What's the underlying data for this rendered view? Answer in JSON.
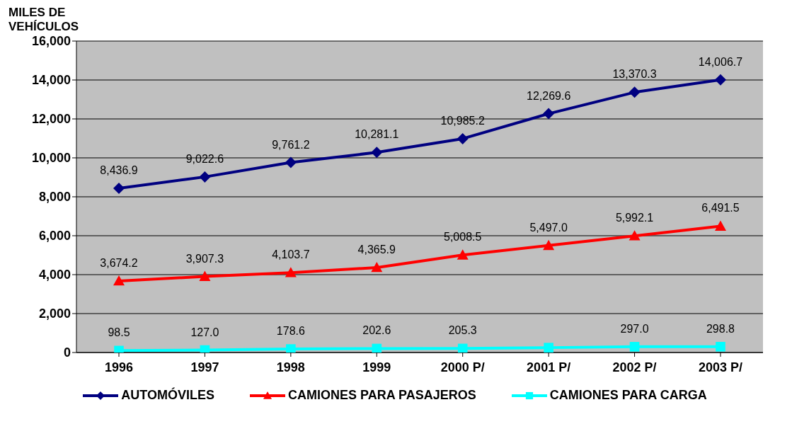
{
  "chart_data": {
    "type": "line",
    "ylabel": "MILES DE VEHÍCULOS",
    "categories": [
      "1996",
      "1997",
      "1998",
      "1999",
      "2000 P/",
      "2001 P/",
      "2002 P/",
      "2003 P/"
    ],
    "series": [
      {
        "name": "AUTOMÓVILES",
        "color": "#000080",
        "marker": "diamond",
        "values": [
          8436.9,
          9022.6,
          9761.2,
          10281.1,
          10985.2,
          12269.6,
          13370.3,
          14006.7
        ],
        "value_labels": [
          "8,436.9",
          "9,022.6",
          "9,761.2",
          "10,281.1",
          "10,985.2",
          "12,269.6",
          "13,370.3",
          "14,006.7"
        ]
      },
      {
        "name": "CAMIONES PARA PASAJEROS",
        "color": "#ff0000",
        "marker": "triangle",
        "values": [
          3674.2,
          3907.3,
          4103.7,
          4365.9,
          5008.5,
          5497.0,
          5992.1,
          6491.5
        ],
        "value_labels": [
          "3,674.2",
          "3,907.3",
          "4,103.7",
          "4,365.9",
          "5,008.5",
          "5,497.0",
          "5,992.1",
          "6,491.5"
        ]
      },
      {
        "name": "CAMIONES PARA CARGA",
        "color": "#00ffff",
        "marker": "square",
        "values": [
          98.5,
          127.0,
          178.6,
          202.6,
          205.3,
          250,
          297.0,
          298.8
        ],
        "value_labels": [
          "98.5",
          "127.0",
          "178.6",
          "202.6",
          "205.3",
          null,
          "297.0",
          "298.8"
        ]
      }
    ],
    "ylim": [
      0,
      16000
    ],
    "yticks": [
      {
        "value": 0,
        "label": "0"
      },
      {
        "value": 2000,
        "label": "2,000"
      },
      {
        "value": 4000,
        "label": "4,000"
      },
      {
        "value": 6000,
        "label": "6,000"
      },
      {
        "value": 8000,
        "label": "8,000"
      },
      {
        "value": 10000,
        "label": "10,000"
      },
      {
        "value": 12000,
        "label": "12,000"
      },
      {
        "value": 14000,
        "label": "14,000"
      },
      {
        "value": 16000,
        "label": "16,000"
      }
    ],
    "grid": "y",
    "legend": "bottom"
  }
}
